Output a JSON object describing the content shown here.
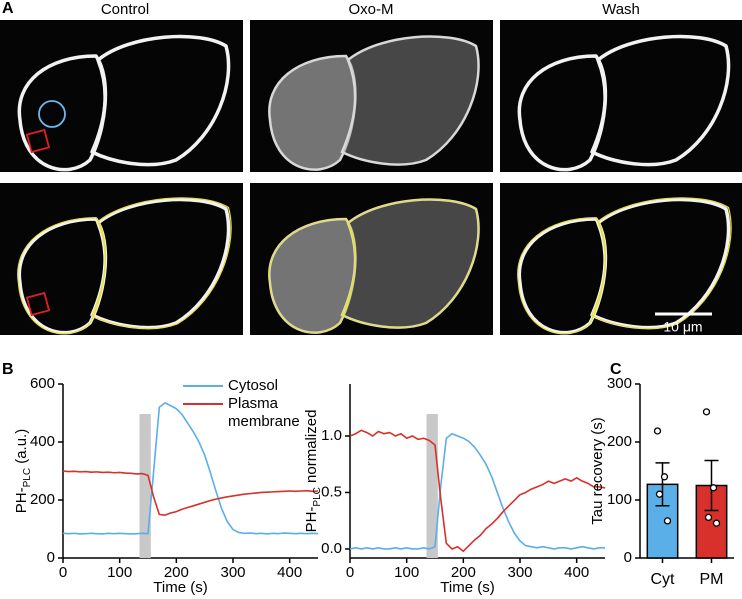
{
  "panel_labels": [
    "A",
    "B",
    "C"
  ],
  "image_titles": [
    "Control",
    "Oxo-M",
    "Wash"
  ],
  "scale_bar": "10 μm",
  "chart_data": [
    {
      "type": "line",
      "y_label": {
        "main": "PH-",
        "sub": "PLC",
        "rest": " (a.u.)"
      },
      "x_label": "Time (s)",
      "xlim": [
        0,
        450
      ],
      "xticks": [
        0,
        100,
        200,
        300,
        400
      ],
      "ylim": [
        0,
        600
      ],
      "yticks": [
        0,
        200,
        400,
        600
      ],
      "shaded_x": [
        135,
        155
      ],
      "legend": "top-right",
      "x": [
        0,
        10,
        20,
        30,
        40,
        50,
        60,
        70,
        80,
        90,
        100,
        110,
        120,
        130,
        140,
        150,
        160,
        170,
        180,
        190,
        200,
        210,
        220,
        230,
        240,
        250,
        260,
        270,
        280,
        290,
        300,
        310,
        320,
        330,
        340,
        350,
        360,
        370,
        380,
        390,
        400,
        410,
        420,
        430,
        440,
        450
      ],
      "series": [
        {
          "name": "Cytosol",
          "color": "#5aafe8",
          "values": [
            85,
            84,
            85,
            83,
            84,
            85,
            84,
            83,
            85,
            84,
            85,
            84,
            83,
            84,
            85,
            84,
            300,
            520,
            535,
            525,
            515,
            495,
            465,
            435,
            400,
            355,
            295,
            230,
            170,
            125,
            98,
            88,
            85,
            86,
            84,
            85,
            83,
            85,
            84,
            86,
            85,
            84,
            85,
            84,
            85,
            84
          ]
        },
        {
          "name": "Plasma membrane",
          "color": "#d8302b",
          "values": [
            300,
            298,
            299,
            297,
            298,
            296,
            297,
            295,
            296,
            294,
            295,
            293,
            292,
            290,
            291,
            285,
            210,
            150,
            148,
            155,
            160,
            168,
            174,
            180,
            186,
            192,
            198,
            203,
            207,
            211,
            214,
            217,
            220,
            222,
            224,
            226,
            227,
            228,
            229,
            230,
            231,
            230,
            231,
            232,
            230,
            231
          ]
        }
      ]
    },
    {
      "type": "line",
      "y_label": {
        "main": "PH-",
        "sub": "PLC",
        "rest": " normalized"
      },
      "x_label": "Time (s)",
      "xlim": [
        0,
        450
      ],
      "xticks": [
        0,
        100,
        200,
        300,
        400
      ],
      "ylim": [
        -0.08,
        1.46
      ],
      "yticks": [
        {
          "value": 0,
          "label": "0.0"
        },
        {
          "value": 0.5,
          "label": "0.5"
        },
        {
          "value": 1,
          "label": "1.0"
        }
      ],
      "shaded_x": [
        135,
        155
      ],
      "x": [
        0,
        10,
        20,
        30,
        40,
        50,
        60,
        70,
        80,
        90,
        100,
        110,
        120,
        130,
        140,
        150,
        160,
        170,
        180,
        190,
        200,
        210,
        220,
        230,
        240,
        250,
        260,
        270,
        280,
        290,
        300,
        310,
        320,
        330,
        340,
        350,
        360,
        370,
        380,
        390,
        400,
        410,
        420,
        430,
        440,
        450
      ],
      "series": [
        {
          "color": "#5aafe8",
          "values": [
            0,
            0.01,
            0,
            0.01,
            0,
            0.01,
            0,
            0,
            0.01,
            0,
            0.01,
            0,
            0,
            0.01,
            0,
            0.02,
            0.55,
            0.98,
            1.02,
            1.0,
            0.98,
            0.95,
            0.9,
            0.83,
            0.75,
            0.64,
            0.5,
            0.36,
            0.24,
            0.14,
            0.07,
            0.03,
            0.02,
            0.01,
            0.02,
            0.01,
            0,
            0.01,
            0.01,
            0,
            0.01,
            0.02,
            0.01,
            0,
            0.01,
            0.01
          ]
        },
        {
          "color": "#d8302b",
          "values": [
            1.0,
            1.02,
            1.05,
            1.03,
            1.0,
            1.04,
            1.02,
            1.03,
            1.0,
            1.02,
            0.98,
            1.0,
            0.97,
            0.98,
            0.96,
            0.92,
            0.45,
            0.05,
            0.0,
            0.02,
            -0.02,
            0.03,
            0.08,
            0.12,
            0.18,
            0.22,
            0.27,
            0.33,
            0.38,
            0.43,
            0.48,
            0.5,
            0.53,
            0.55,
            0.57,
            0.6,
            0.58,
            0.6,
            0.62,
            0.6,
            0.63,
            0.6,
            0.58,
            0.55,
            0.55,
            0.54
          ]
        }
      ]
    },
    {
      "type": "bar",
      "y_label": "Tau recovery (s)",
      "categories": [
        "Cyt",
        "PM"
      ],
      "values": [
        127,
        125
      ],
      "errors": [
        37,
        43
      ],
      "colors": [
        "#5aafe8",
        "#d8302b"
      ],
      "points": [
        [
          219,
          140,
          110,
          64
        ],
        [
          252,
          121,
          70,
          60
        ]
      ],
      "ylim": [
        0,
        300
      ],
      "yticks": [
        0,
        100,
        200,
        300
      ]
    }
  ]
}
